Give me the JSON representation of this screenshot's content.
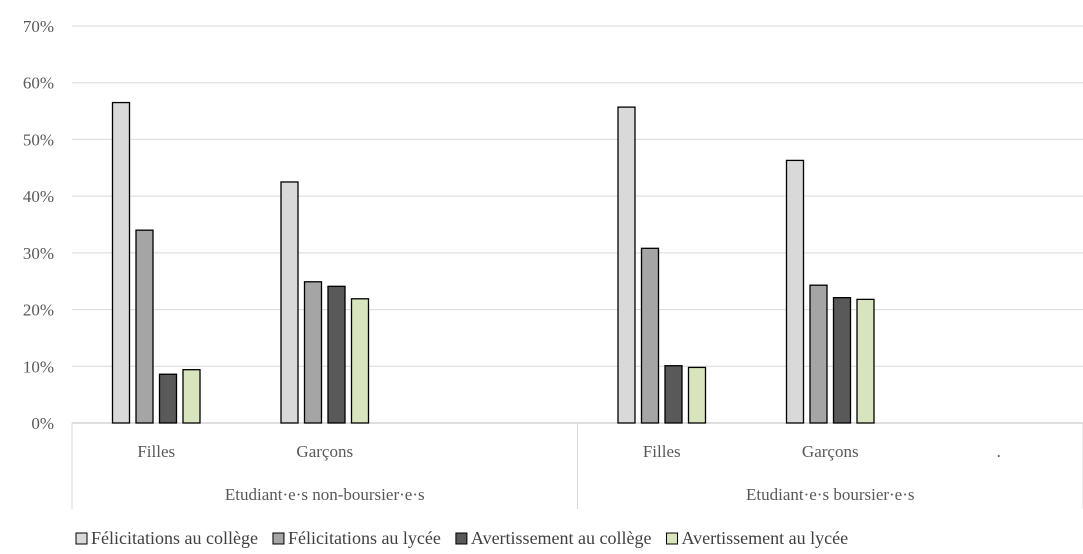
{
  "chart_data": {
    "type": "bar",
    "groups": [
      {
        "label": "Etudiant·e·s non-boursier·e·s",
        "categories": [
          "Filles",
          "Garçons",
          ""
        ]
      },
      {
        "label": "Etudiant·e·s boursier·e·s",
        "categories": [
          "Filles",
          "Garçons",
          "."
        ]
      }
    ],
    "series": [
      {
        "name": "Félicitations au collège",
        "color": "#d9d9d9",
        "values": [
          56.5,
          42.5,
          null,
          55.7,
          46.3,
          null
        ]
      },
      {
        "name": "Félicitations au lycée",
        "color": "#a5a5a5",
        "values": [
          34.0,
          24.9,
          null,
          30.8,
          24.3,
          null
        ]
      },
      {
        "name": "Avertissement au collège",
        "color": "#595959",
        "values": [
          8.6,
          24.1,
          null,
          10.1,
          22.1,
          null
        ]
      },
      {
        "name": "Avertissement au lycée",
        "color": "#d7e4bd",
        "values": [
          9.4,
          21.9,
          null,
          9.8,
          21.8,
          null
        ]
      }
    ],
    "yticks": [
      "0%",
      "10%",
      "20%",
      "30%",
      "40%",
      "50%",
      "60%",
      "70%"
    ],
    "ylim": [
      0,
      70
    ],
    "grid": true,
    "legend_position": "bottom"
  }
}
